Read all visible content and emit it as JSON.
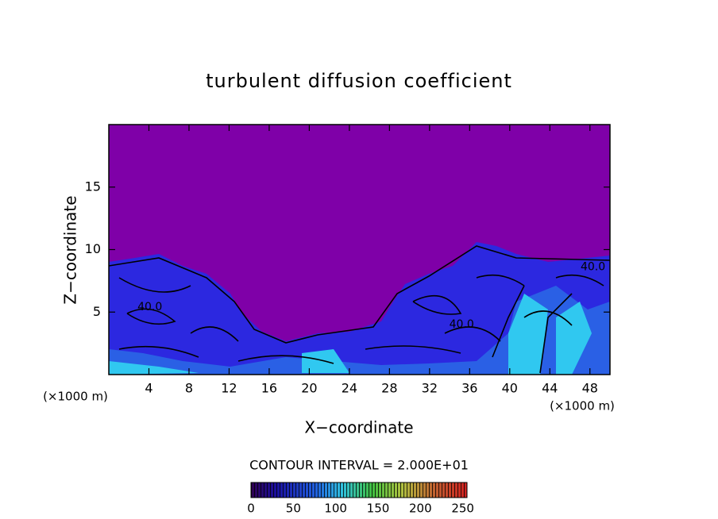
{
  "chart_data": {
    "type": "contour",
    "title": "turbulent diffusion coefficient",
    "x_label": "X−coordinate",
    "y_label": "Z−coordinate",
    "x_unit": "(×1000 m)",
    "y_unit": "(×1000 m)",
    "xlim": [
      0,
      50
    ],
    "ylim": [
      0,
      20
    ],
    "xticks": [
      4,
      8,
      12,
      16,
      20,
      24,
      28,
      32,
      36,
      40,
      44,
      48
    ],
    "yticks": [
      5,
      10,
      15
    ],
    "contour_interval_label": "CONTOUR INTERVAL = 2.000E+01",
    "contour_labels": [
      {
        "text": "40.0",
        "x": 4.1,
        "y": 5.4
      },
      {
        "text": "40.0",
        "x": 35.2,
        "y": 4.0
      },
      {
        "text": "40.0",
        "x": 48.3,
        "y": 8.6
      }
    ],
    "colorbar": {
      "lim": [
        0,
        255
      ],
      "ticks": [
        0,
        50,
        100,
        150,
        200,
        250
      ]
    },
    "background_color": "#7f00a8"
  }
}
